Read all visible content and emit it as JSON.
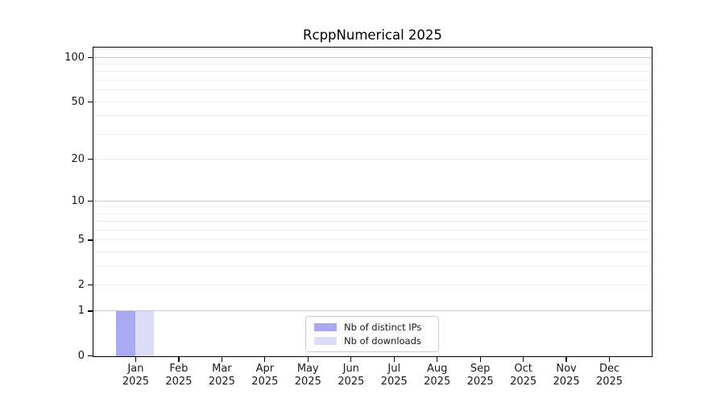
{
  "chart_data": {
    "type": "bar",
    "title": "RcppNumerical 2025",
    "categories": [
      "Jan",
      "Feb",
      "Mar",
      "Apr",
      "May",
      "Jun",
      "Jul",
      "Aug",
      "Sep",
      "Oct",
      "Nov",
      "Dec"
    ],
    "year_label": "2025",
    "series": [
      {
        "name": "Nb of distinct IPs",
        "color": "#a9a9f2",
        "values": [
          1,
          0,
          0,
          0,
          0,
          0,
          0,
          0,
          0,
          0,
          0,
          0
        ]
      },
      {
        "name": "Nb of downloads",
        "color": "#dcdcf9",
        "values": [
          1,
          0,
          0,
          0,
          0,
          0,
          0,
          0,
          0,
          0,
          0,
          0
        ]
      }
    ],
    "yscale": "log1p",
    "ylim": [
      0,
      116
    ],
    "y_tick_values": [
      0,
      1,
      2,
      5,
      10,
      20,
      50,
      100
    ],
    "grid_major": [
      1,
      10,
      100
    ],
    "grid_minor": [
      2,
      3,
      4,
      5,
      6,
      7,
      8,
      9,
      20,
      30,
      40,
      50,
      60,
      70,
      80,
      90
    ],
    "legend_position": "bottom-center",
    "grid": "on"
  },
  "colors": {
    "grid_major": "#c6c6c6",
    "grid_minor": "#ededed",
    "spine": "#000000",
    "text": "#191919",
    "background": "#ffffff"
  }
}
